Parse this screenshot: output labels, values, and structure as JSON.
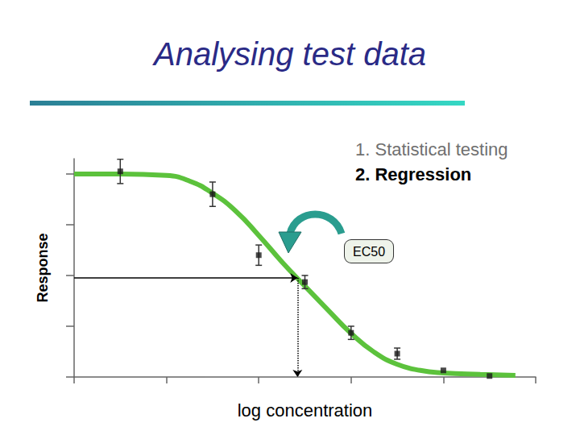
{
  "chart_data": {
    "type": "scatter",
    "title": "Analysing test data",
    "annotations": [
      "1. Statistical testing",
      "2. Regression"
    ],
    "x_label": "log concentration",
    "y_label": "Response",
    "series": [
      {
        "type": "scatter",
        "color": "#1a1a1a",
        "marker": "square",
        "x": [
          0.5,
          1.5,
          2.0,
          2.5,
          3.0,
          3.5,
          4.0,
          4.5
        ],
        "values": [
          4.05,
          3.6,
          2.4,
          1.87,
          0.87,
          0.46,
          0.13,
          0.02
        ],
        "errors": [
          0.24,
          0.24,
          0.2,
          0.13,
          0.13,
          0.11,
          0,
          0
        ]
      },
      {
        "type": "line",
        "color": "#5cc23c",
        "line_style": "solid",
        "x": [
          0,
          0.5,
          1.0,
          1.25,
          1.5,
          1.75,
          2.0,
          2.25,
          2.5,
          2.75,
          3.0,
          3.25,
          3.5,
          3.75,
          4.0,
          4.4,
          4.78
        ],
        "values": [
          4.0,
          4.0,
          3.97,
          3.86,
          3.62,
          3.27,
          2.79,
          2.27,
          1.79,
          1.32,
          0.86,
          0.49,
          0.25,
          0.13,
          0.08,
          0.05,
          0.03
        ]
      }
    ],
    "ec50": {
      "label": "EC50",
      "x": 2.42,
      "y": 1.95
    },
    "xlim": [
      0,
      5
    ],
    "xticks": [
      0,
      1,
      2,
      3,
      4,
      5
    ],
    "ylim": [
      0,
      4.3
    ],
    "yticks": [
      0,
      1,
      2,
      3,
      4
    ],
    "tick_labels": false,
    "grid": false
  }
}
